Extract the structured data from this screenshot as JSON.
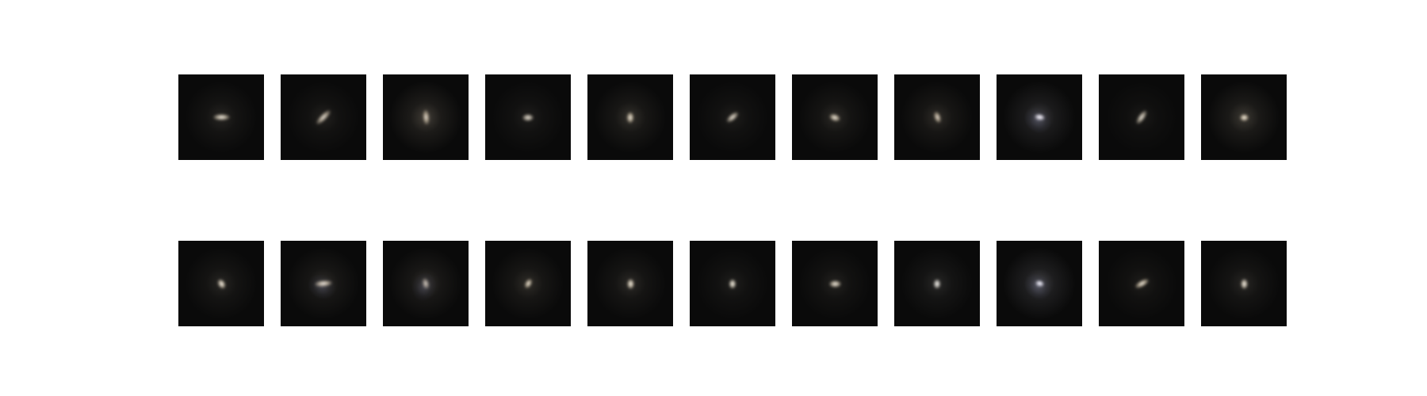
{
  "figure": {
    "background_color": "#ffffff",
    "tile_background": "#0a0a0a",
    "rows": [
      {
        "name": "top",
        "tiles": [
          {
            "shape": "elongated",
            "angle": 0,
            "elongation": 2.6,
            "brightness": 0.9,
            "tint": "#f3e6cf",
            "halo_strength": 0.35
          },
          {
            "shape": "elongated",
            "angle": -45,
            "elongation": 3.0,
            "brightness": 0.85,
            "tint": "#efe0c8",
            "halo_strength": 0.3
          },
          {
            "shape": "elongated",
            "angle": 85,
            "elongation": 2.4,
            "brightness": 0.85,
            "tint": "#e9d8bd",
            "halo_strength": 0.7
          },
          {
            "shape": "compact",
            "angle": 0,
            "elongation": 1.6,
            "brightness": 0.85,
            "tint": "#f5ead6",
            "halo_strength": 0.25
          },
          {
            "shape": "compact",
            "angle": 90,
            "elongation": 1.5,
            "brightness": 0.9,
            "tint": "#f1e2c6",
            "halo_strength": 0.5
          },
          {
            "shape": "elongated",
            "angle": -40,
            "elongation": 2.2,
            "brightness": 0.85,
            "tint": "#f3e6d0",
            "halo_strength": 0.25
          },
          {
            "shape": "compact",
            "angle": 20,
            "elongation": 1.5,
            "brightness": 0.9,
            "tint": "#efe1c7",
            "halo_strength": 0.4
          },
          {
            "shape": "elongated",
            "angle": 70,
            "elongation": 1.9,
            "brightness": 0.85,
            "tint": "#eddcc0",
            "halo_strength": 0.45
          },
          {
            "shape": "irregular",
            "angle": 10,
            "elongation": 1.6,
            "brightness": 1.0,
            "tint": "#f6f2ff",
            "halo_strength": 0.6
          },
          {
            "shape": "elongated",
            "angle": -55,
            "elongation": 2.5,
            "brightness": 0.85,
            "tint": "#f1e5cf",
            "halo_strength": 0.2
          },
          {
            "shape": "compact",
            "angle": 0,
            "elongation": 1.2,
            "brightness": 0.95,
            "tint": "#f3e4c8",
            "halo_strength": 0.6
          }
        ]
      },
      {
        "name": "bottom",
        "tiles": [
          {
            "shape": "compact",
            "angle": 60,
            "elongation": 1.4,
            "brightness": 0.95,
            "tint": "#f3e6cf",
            "halo_strength": 0.35
          },
          {
            "shape": "irregular",
            "angle": -5,
            "elongation": 2.8,
            "brightness": 0.9,
            "tint": "#efe0c8",
            "halo_strength": 0.45
          },
          {
            "shape": "irregular",
            "angle": 75,
            "elongation": 1.8,
            "brightness": 0.8,
            "tint": "#d9cbb8",
            "halo_strength": 0.55
          },
          {
            "shape": "elongated",
            "angle": -60,
            "elongation": 1.6,
            "brightness": 0.9,
            "tint": "#efe0c4",
            "halo_strength": 0.45
          },
          {
            "shape": "compact",
            "angle": 90,
            "elongation": 1.4,
            "brightness": 0.95,
            "tint": "#f2e5cd",
            "halo_strength": 0.4
          },
          {
            "shape": "compact",
            "angle": 90,
            "elongation": 1.3,
            "brightness": 0.95,
            "tint": "#f5ecd8",
            "halo_strength": 0.25
          },
          {
            "shape": "compact",
            "angle": 0,
            "elongation": 1.7,
            "brightness": 0.9,
            "tint": "#f3e6cf",
            "halo_strength": 0.3
          },
          {
            "shape": "compact",
            "angle": 90,
            "elongation": 1.3,
            "brightness": 0.95,
            "tint": "#f2eee6",
            "halo_strength": 0.35
          },
          {
            "shape": "irregular",
            "angle": 15,
            "elongation": 1.4,
            "brightness": 1.0,
            "tint": "#f2f0ff",
            "halo_strength": 0.7
          },
          {
            "shape": "elongated",
            "angle": -30,
            "elongation": 2.4,
            "brightness": 0.9,
            "tint": "#f3e4c8",
            "halo_strength": 0.25
          },
          {
            "shape": "compact",
            "angle": 90,
            "elongation": 1.4,
            "brightness": 0.95,
            "tint": "#f3e8d4",
            "halo_strength": 0.35
          }
        ]
      }
    ]
  }
}
